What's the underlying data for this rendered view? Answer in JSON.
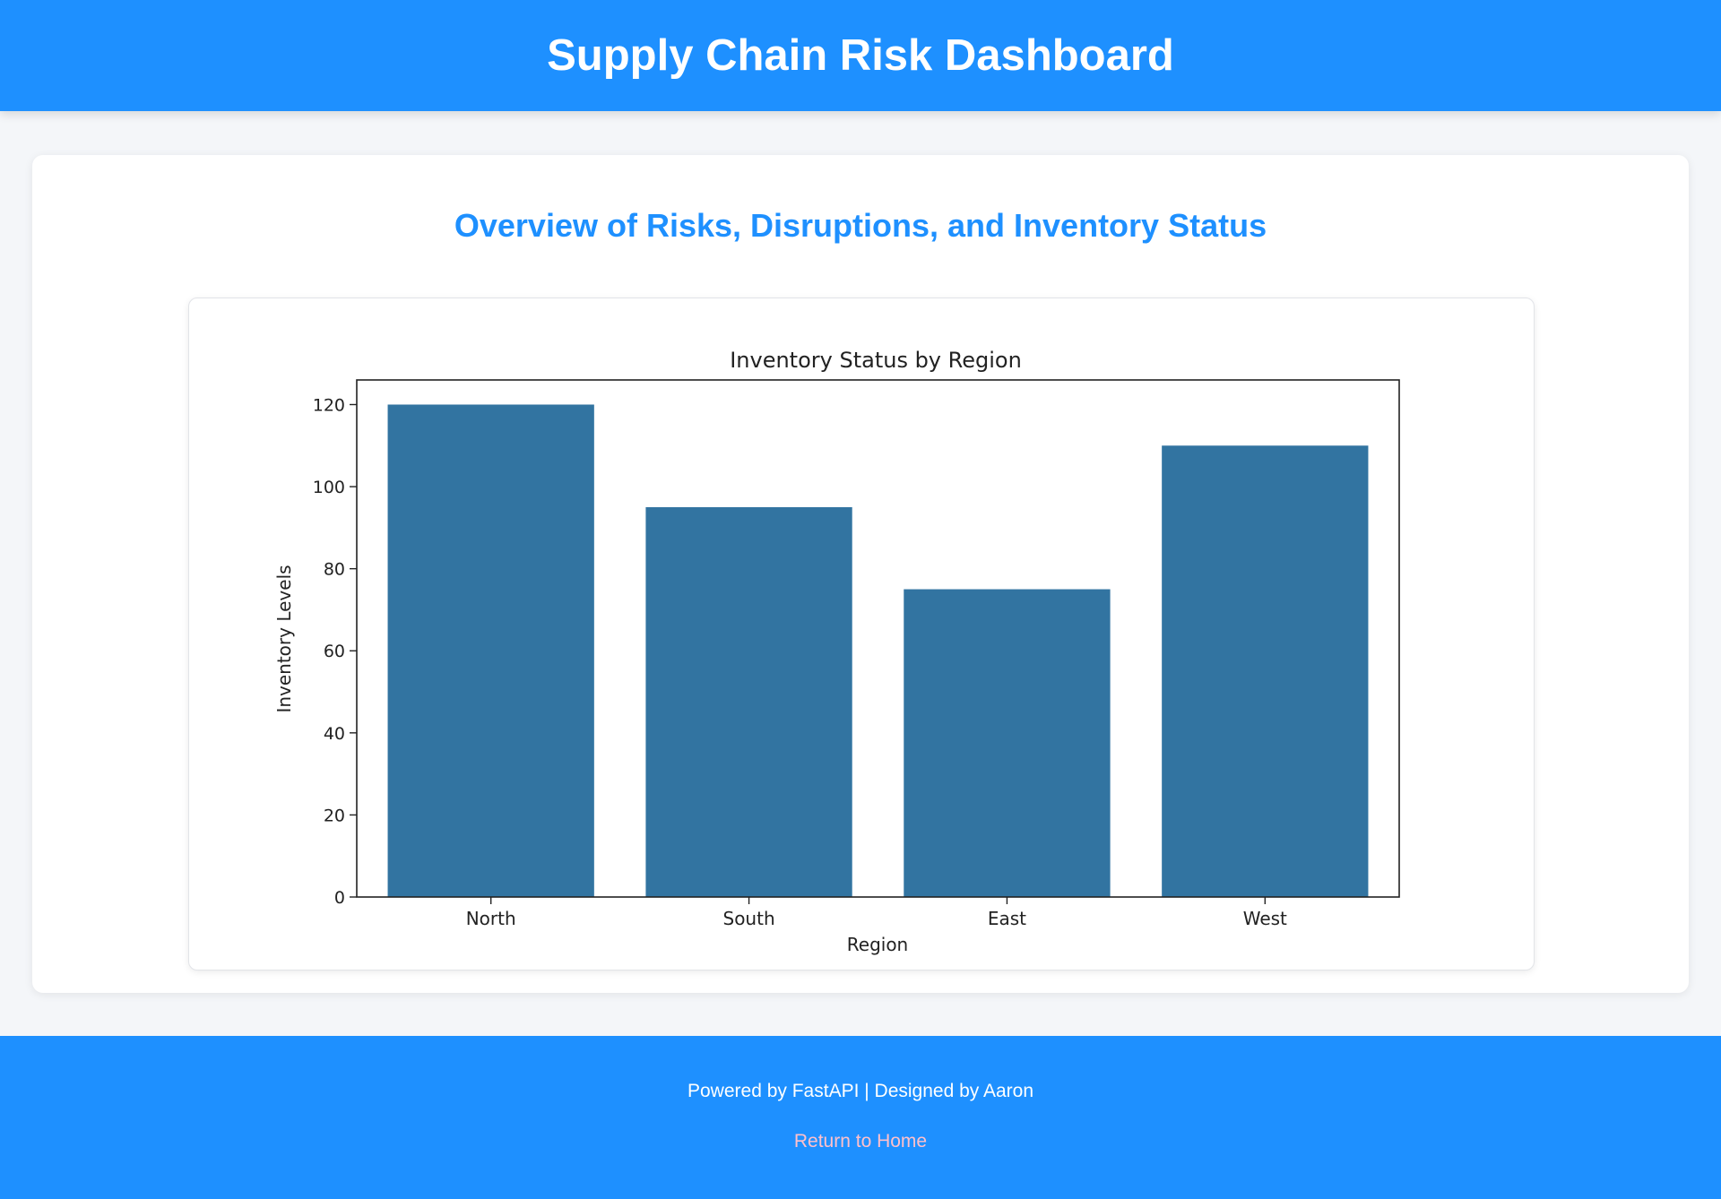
{
  "header": {
    "title": "Supply Chain Risk Dashboard"
  },
  "main": {
    "section_title": "Overview of Risks, Disruptions, and Inventory Status"
  },
  "chart_data": {
    "type": "bar",
    "title": "Inventory Status by Region",
    "xlabel": "Region",
    "ylabel": "Inventory Levels",
    "categories": [
      "North",
      "South",
      "East",
      "West"
    ],
    "values": [
      120,
      95,
      75,
      110
    ],
    "ylim": [
      0,
      126
    ],
    "yticks": [
      0,
      20,
      40,
      60,
      80,
      100,
      120
    ],
    "bar_color": "#3274a1",
    "grid": false
  },
  "footer": {
    "credit": "Powered by FastAPI | Designed by Aaron",
    "home_link": "Return to Home"
  },
  "colors": {
    "brand": "#1e90ff",
    "link": "#ffc0cb",
    "bar": "#3274a1"
  }
}
